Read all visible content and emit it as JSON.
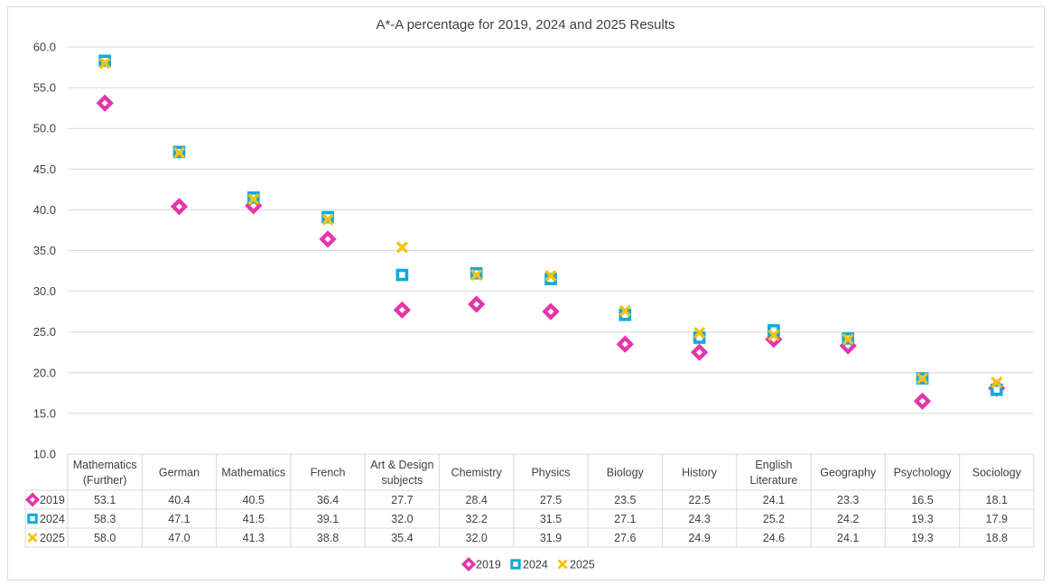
{
  "chart_data": {
    "type": "scatter",
    "title": "A*-A percentage for 2019, 2024 and 2025 Results",
    "categories": [
      "Mathematics (Further)",
      "German",
      "Mathematics",
      "French",
      "Art & Design subjects",
      "Chemistry",
      "Physics",
      "Biology",
      "History",
      "English Literature",
      "Geography",
      "Psychology",
      "Sociology"
    ],
    "category_lines": [
      [
        "Mathematics",
        "(Further)"
      ],
      [
        "German"
      ],
      [
        "Mathematics"
      ],
      [
        "French"
      ],
      [
        "Art & Design",
        "subjects"
      ],
      [
        "Chemistry"
      ],
      [
        "Physics"
      ],
      [
        "Biology"
      ],
      [
        "History"
      ],
      [
        "English",
        "Literature"
      ],
      [
        "Geography"
      ],
      [
        "Psychology"
      ],
      [
        "Sociology"
      ]
    ],
    "ylim": [
      10.0,
      60.0
    ],
    "yticks": [
      "10.0",
      "15.0",
      "20.0",
      "25.0",
      "30.0",
      "35.0",
      "40.0",
      "45.0",
      "50.0",
      "55.0",
      "60.0"
    ],
    "grid": true,
    "legend_position": "bottom",
    "data_table": true,
    "series": [
      {
        "name": "2019",
        "marker": "diamond",
        "color": "#E535AB",
        "values": [
          53.1,
          40.4,
          40.5,
          36.4,
          27.7,
          28.4,
          27.5,
          23.5,
          22.5,
          24.1,
          23.3,
          16.5,
          18.1
        ],
        "labels": [
          "53.1",
          "40.4",
          "40.5",
          "36.4",
          "27.7",
          "28.4",
          "27.5",
          "23.5",
          "22.5",
          "24.1",
          "23.3",
          "16.5",
          "18.1"
        ]
      },
      {
        "name": "2024",
        "marker": "square",
        "color": "#10A8DF",
        "values": [
          58.3,
          47.1,
          41.5,
          39.1,
          32.0,
          32.2,
          31.5,
          27.1,
          24.3,
          25.2,
          24.2,
          19.3,
          17.9
        ],
        "labels": [
          "58.3",
          "47.1",
          "41.5",
          "39.1",
          "32.0",
          "32.2",
          "31.5",
          "27.1",
          "24.3",
          "25.2",
          "24.2",
          "19.3",
          "17.9"
        ]
      },
      {
        "name": "2025",
        "marker": "x",
        "color": "#F4C20D",
        "values": [
          58.0,
          47.0,
          41.3,
          38.8,
          35.4,
          32.0,
          31.9,
          27.6,
          24.9,
          24.6,
          24.1,
          19.3,
          18.8
        ],
        "labels": [
          "58.0",
          "47.0",
          "41.3",
          "38.8",
          "35.4",
          "32.0",
          "31.9",
          "27.6",
          "24.9",
          "24.6",
          "24.1",
          "19.3",
          "18.8"
        ]
      }
    ]
  }
}
